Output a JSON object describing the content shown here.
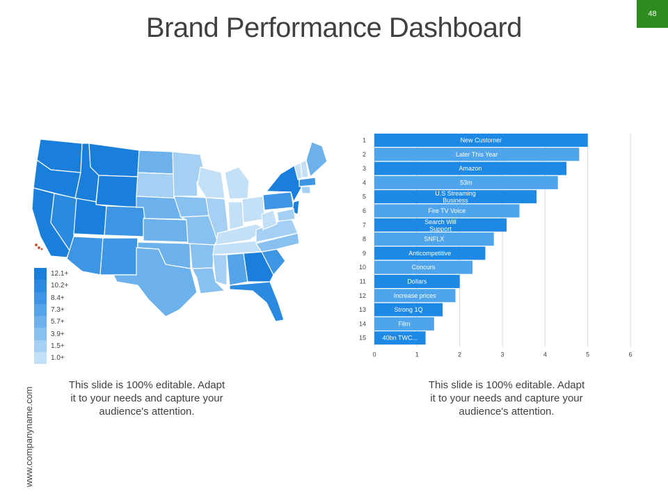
{
  "header": {
    "title": "Brand Performance Dashboard",
    "slide_number": "48"
  },
  "side_text": "www.companyname.com",
  "colors": {
    "accent_green": "#2e8b1d",
    "dark_blue": "#1e88e5",
    "mid_blue": "#3d9ae8",
    "light_blue": "#6ab6f0",
    "lightest_blue": "#c6e2f7"
  },
  "map": {
    "legend": [
      {
        "label": "12.1+",
        "color": "#1a7fdb"
      },
      {
        "label": "10.2+",
        "color": "#2b8ae0"
      },
      {
        "label": "8.4+",
        "color": "#3e95e3"
      },
      {
        "label": "7.3+",
        "color": "#55a3e8"
      },
      {
        "label": "5.7+",
        "color": "#6db1ec"
      },
      {
        "label": "3.9+",
        "color": "#88c0f0"
      },
      {
        "label": "1.5+",
        "color": "#a6d0f3"
      },
      {
        "label": "1.0+",
        "color": "#c4e0f7"
      }
    ]
  },
  "captions": {
    "left": "This slide is 100% editable. Adapt it to your needs and capture your audience's attention.",
    "right": "This slide is 100% editable. Adapt it to your needs and capture your audience's attention."
  },
  "chart_data": {
    "type": "bar",
    "orientation": "horizontal",
    "categories": [
      "1",
      "2",
      "3",
      "4",
      "5",
      "6",
      "7",
      "8",
      "9",
      "10",
      "11",
      "12",
      "13",
      "14",
      "15"
    ],
    "bar_labels": [
      "New Customer",
      "Later This Year",
      "Amazon",
      "53m",
      "U.S Streaming Business",
      "Fire TV Voice",
      "Search Will Support",
      "SNFLX",
      "Anticompetitive",
      "Concurs",
      "Dollars",
      "Increase prices",
      "Strong 1Q",
      "Film",
      "40bn TWC..."
    ],
    "values": [
      5.0,
      4.8,
      4.5,
      4.3,
      3.8,
      3.4,
      3.1,
      2.8,
      2.6,
      2.3,
      2.0,
      1.9,
      1.6,
      1.4,
      1.2
    ],
    "bar_colors": [
      "#1e88e5",
      "#4ea5ec",
      "#1e88e5",
      "#4ea5ec",
      "#1e88e5",
      "#4ea5ec",
      "#1e88e5",
      "#4ea5ec",
      "#1e88e5",
      "#4ea5ec",
      "#1e88e5",
      "#4ea5ec",
      "#1e88e5",
      "#4ea5ec",
      "#1e88e5"
    ],
    "xticks": [
      "0",
      "1",
      "2",
      "3",
      "4",
      "5",
      "6"
    ],
    "xlim": [
      0,
      6
    ],
    "grid": true,
    "title": "",
    "xlabel": "",
    "ylabel": ""
  }
}
